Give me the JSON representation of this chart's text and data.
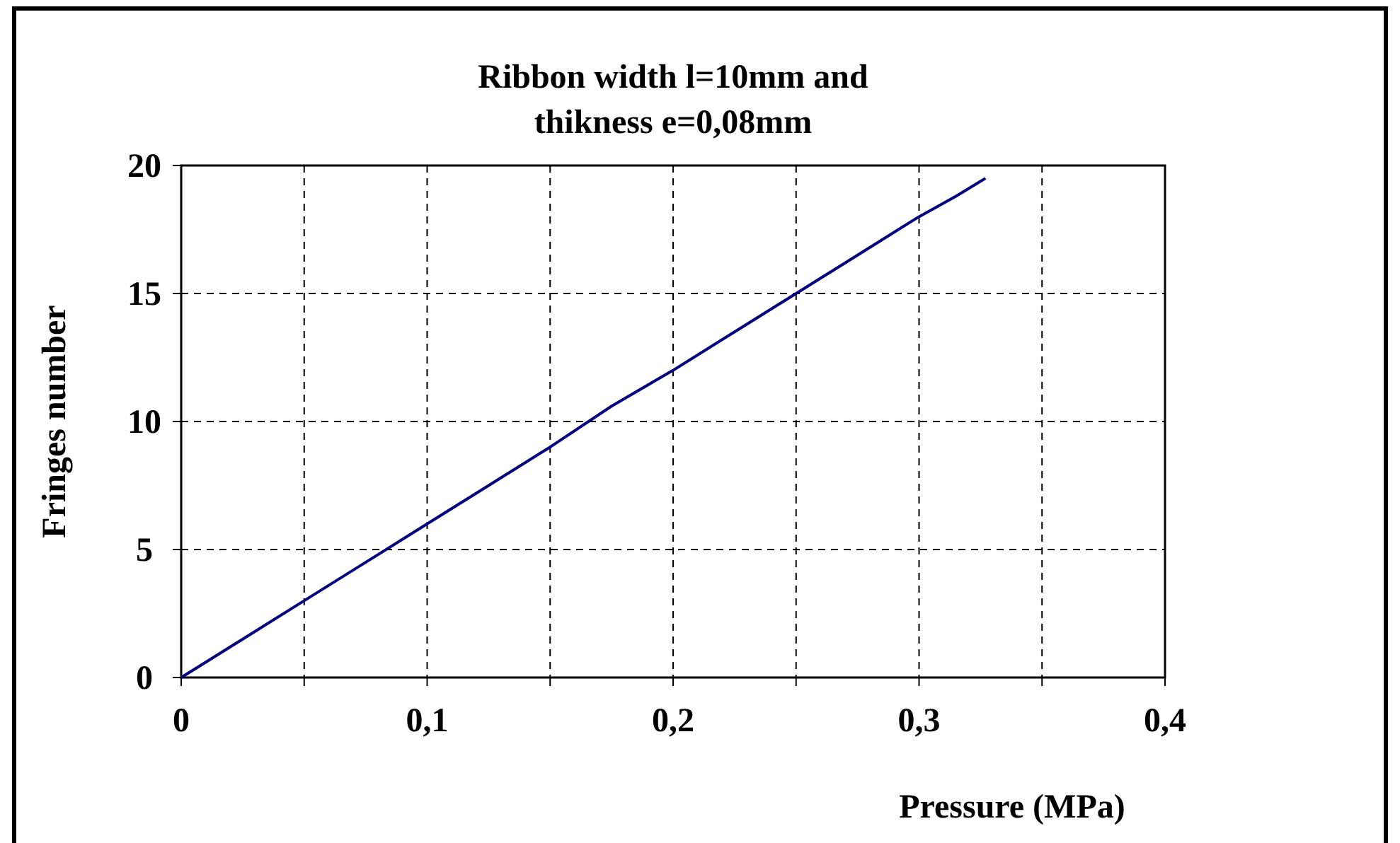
{
  "chart_data": {
    "type": "line",
    "title": "Ribbon width l=10mm and\nthikness e=0,08mm",
    "xlabel": "Pressure (MPa)",
    "ylabel": "Fringes number",
    "x": [
      0,
      0.025,
      0.05,
      0.075,
      0.1,
      0.125,
      0.15,
      0.175,
      0.2,
      0.225,
      0.25,
      0.275,
      0.3,
      0.315,
      0.327
    ],
    "series": [
      {
        "color": "#000080",
        "values": [
          0,
          1.5,
          3,
          4.5,
          6,
          7.5,
          9,
          10.6,
          12,
          13.5,
          15,
          16.5,
          18,
          18.8,
          19.5
        ]
      }
    ],
    "xlim": [
      0,
      0.4
    ],
    "xticks": [
      0,
      {
        "value": 0.05,
        "label": null
      },
      {
        "value": 0.1,
        "label": "0,1"
      },
      {
        "value": 0.15,
        "label": null
      },
      {
        "value": 0.2,
        "label": "0,2"
      },
      {
        "value": 0.25,
        "label": null
      },
      {
        "value": 0.3,
        "label": "0,3"
      },
      {
        "value": 0.35,
        "label": null
      },
      {
        "value": 0.4,
        "label": "0,4"
      }
    ],
    "ylim": [
      0,
      20
    ],
    "yticks": [
      0,
      5,
      10,
      15,
      20
    ],
    "grid": true,
    "marker": "none",
    "line_style": "solid"
  }
}
